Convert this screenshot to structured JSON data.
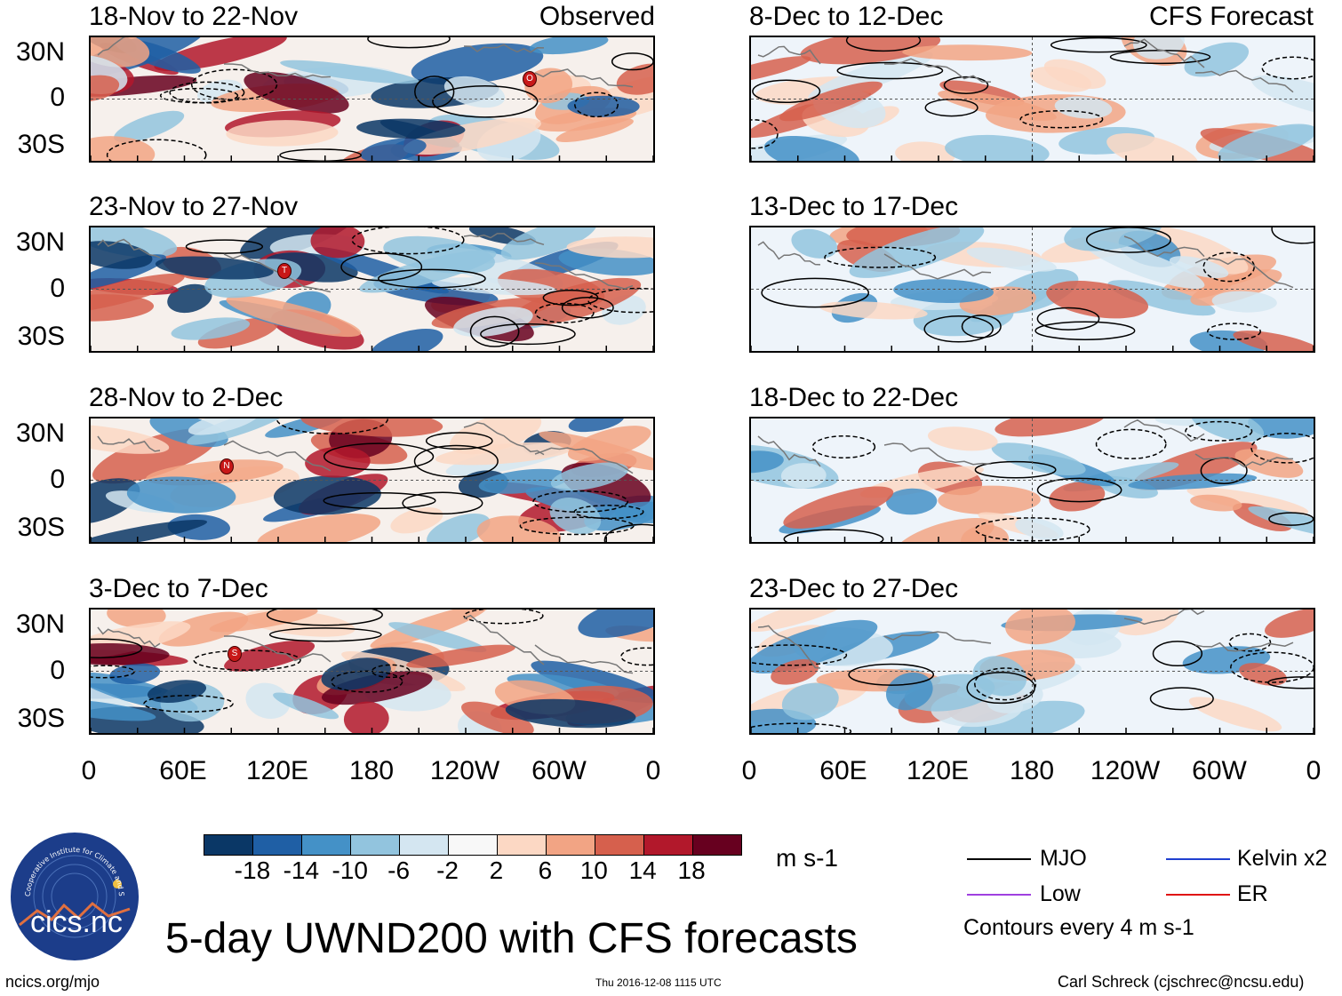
{
  "left_column": {
    "header_right": "Observed",
    "panels": [
      {
        "title": "18-Nov to 22-Nov",
        "marker": "O"
      },
      {
        "title": "23-Nov to 27-Nov",
        "marker": "T"
      },
      {
        "title": "28-Nov to 2-Dec",
        "marker": "N"
      },
      {
        "title": "3-Dec to 7-Dec",
        "marker": "S"
      }
    ]
  },
  "right_column": {
    "header_right": "CFS Forecast",
    "panels": [
      {
        "title": "8-Dec to 12-Dec"
      },
      {
        "title": "13-Dec to 17-Dec"
      },
      {
        "title": "18-Dec to 22-Dec"
      },
      {
        "title": "23-Dec to 27-Dec"
      }
    ]
  },
  "lat_labels": [
    "30N",
    "0",
    "30S"
  ],
  "lon_labels": [
    "0",
    "60E",
    "120E",
    "180",
    "120W",
    "60W",
    "0"
  ],
  "colorbar": {
    "ticks": [
      "-18",
      "-14",
      "-10",
      "-6",
      "-2",
      "2",
      "6",
      "10",
      "14",
      "18"
    ],
    "colors": [
      "#0a3766",
      "#1f5fa5",
      "#4491c7",
      "#92c4de",
      "#d4e6f1",
      "#f8f8f8",
      "#fcd8c4",
      "#f2a484",
      "#d6604d",
      "#b2182b",
      "#67001f"
    ],
    "units": "m s-1"
  },
  "legend": {
    "items": [
      {
        "label": "MJO",
        "color": "#000000"
      },
      {
        "label": "Kelvin x2",
        "color": "#2040d0"
      },
      {
        "label": "Low",
        "color": "#a040e0"
      },
      {
        "label": "ER",
        "color": "#e01010"
      }
    ],
    "note": "Contours every 4 m s-1"
  },
  "logo_text": "cics.nc",
  "logo_ring_text": "Cooperative Institute for Climate and Satellites",
  "main_title": "5-day UWND200 with CFS forecasts",
  "footer": {
    "left": "ncics.org/mjo",
    "center": "Thu 2016-12-08 1115 UTC",
    "right": "Carl Schreck (cjschrec@ncsu.edu)"
  }
}
